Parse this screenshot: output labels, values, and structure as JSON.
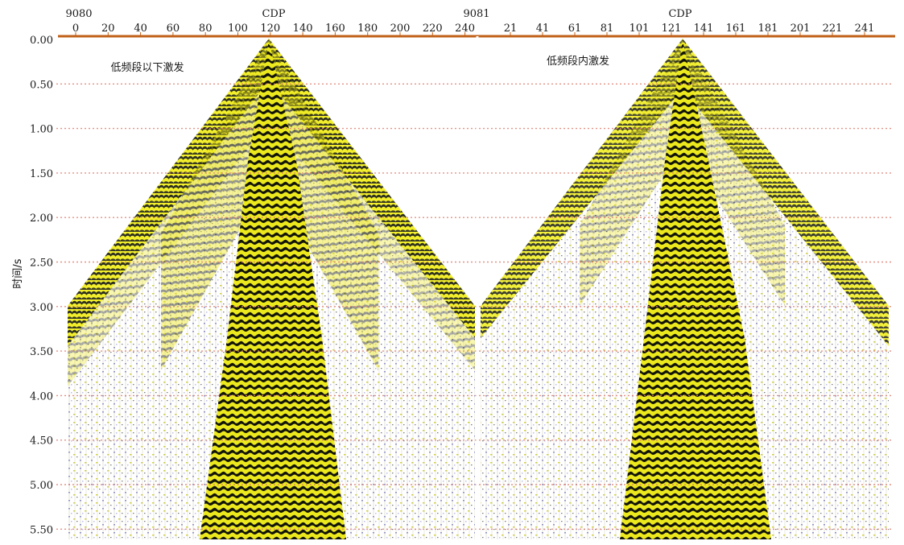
{
  "y_axis": {
    "label": "时间/s",
    "ticks": [
      "0.00",
      "0.50",
      "1.00",
      "1.50",
      "2.00",
      "2.50",
      "3.00",
      "3.50",
      "4.00",
      "4.50",
      "5.00",
      "5.50"
    ]
  },
  "panels": [
    {
      "shot_id": "9080",
      "axis_title": "CDP",
      "label": "低频段以下激发",
      "x_ticks": [
        "0",
        "20",
        "40",
        "60",
        "80",
        "100",
        "120",
        "140",
        "160",
        "180",
        "200",
        "220",
        "240"
      ]
    },
    {
      "shot_id": "9081",
      "axis_title": "CDP",
      "label": "低频段内激发",
      "x_ticks": [
        "21",
        "41",
        "61",
        "81",
        "101",
        "121",
        "141",
        "161",
        "181",
        "201",
        "221",
        "241"
      ]
    }
  ],
  "colors": {
    "axis": "#c06018",
    "gridline": "#e08070",
    "wiggle_fill": "#f2ee1a",
    "trough": "#1c1f10",
    "noise_blue": "#3a3aa8"
  }
}
